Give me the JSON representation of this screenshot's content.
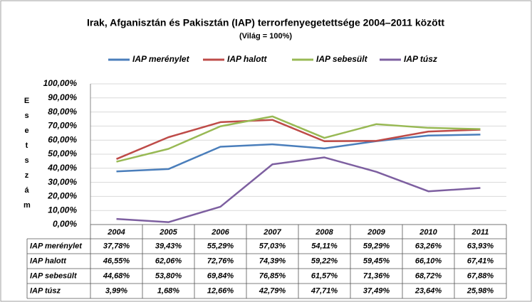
{
  "chart_data": {
    "type": "line",
    "title": "Irak, Afganisztán és Pakisztán (IAP) terrorfenyegetettsége  2004–2011 között",
    "subtitle": "(Világ = 100%)",
    "y_label": "Esetszám",
    "categories": [
      "2004",
      "2005",
      "2006",
      "2007",
      "2008",
      "2009",
      "2010",
      "2011"
    ],
    "series": [
      {
        "name": "IAP merénylet",
        "color": "#4a7ebb",
        "values": [
          37.78,
          39.43,
          55.29,
          57.03,
          54.11,
          59.29,
          63.26,
          63.93
        ],
        "value_labels": [
          "37,78%",
          "39,43%",
          "55,29%",
          "57,03%",
          "54,11%",
          "59,29%",
          "63,26%",
          "63,93%"
        ]
      },
      {
        "name": "IAP halott",
        "color": "#be4b48",
        "values": [
          46.55,
          62.06,
          72.76,
          74.39,
          59.22,
          59.45,
          66.1,
          67.41
        ],
        "value_labels": [
          "46,55%",
          "62,06%",
          "72,76%",
          "74,39%",
          "59,22%",
          "59,45%",
          "66,10%",
          "67,41%"
        ]
      },
      {
        "name": "IAP sebesült",
        "color": "#98b954",
        "values": [
          44.68,
          53.8,
          69.84,
          76.85,
          61.57,
          71.36,
          68.72,
          67.88
        ],
        "value_labels": [
          "44,68%",
          "53,80%",
          "69,84%",
          "76,85%",
          "61,57%",
          "71,36%",
          "68,72%",
          "67,88%"
        ]
      },
      {
        "name": "IAP túsz",
        "color": "#7d5fa0",
        "values": [
          3.99,
          1.68,
          12.66,
          42.79,
          47.71,
          37.49,
          23.64,
          25.98
        ],
        "value_labels": [
          "3,99%",
          "1,68%",
          "12,66%",
          "42,79%",
          "47,71%",
          "37,49%",
          "23,64%",
          "25,98%"
        ]
      }
    ],
    "ylim": [
      0,
      100
    ],
    "yticks": [
      {
        "value": 0,
        "label": "0,00%"
      },
      {
        "value": 10,
        "label": "10,00%"
      },
      {
        "value": 20,
        "label": "20,00%"
      },
      {
        "value": 30,
        "label": "30,00%"
      },
      {
        "value": 40,
        "label": "40,00%"
      },
      {
        "value": 50,
        "label": "50,00%"
      },
      {
        "value": 60,
        "label": "60,00%"
      },
      {
        "value": 70,
        "label": "70,00%"
      },
      {
        "value": 80,
        "label": "80,00%"
      },
      {
        "value": 90,
        "label": "90,00%"
      },
      {
        "value": 100,
        "label": "100,00%"
      }
    ],
    "grid": true,
    "legend": "top"
  }
}
